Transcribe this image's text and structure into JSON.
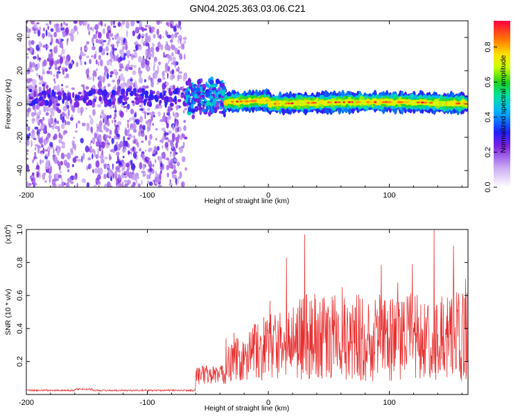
{
  "title": "GN04.2025.363.03.06.C21",
  "chart_data": [
    {
      "type": "heatmap",
      "title": "GN04.2025.363.03.06.C21",
      "xlabel": "Height of straight line (km)",
      "ylabel": "Frequency (Hz)",
      "xlim": [
        -200,
        165
      ],
      "ylim": [
        -50,
        50
      ],
      "x_ticks": [
        -200,
        -100,
        0,
        100
      ],
      "y_ticks": [
        -40,
        -20,
        0,
        20,
        40
      ],
      "colorbar": {
        "label": "Normalized spectral amplitude",
        "range": [
          0.0,
          0.95
        ],
        "ticks": [
          "0.0",
          "0.2",
          "0.4",
          "0.6",
          "0.8"
        ],
        "tick_values": [
          0.0,
          0.2,
          0.4,
          0.6,
          0.8
        ]
      },
      "regions": [
        {
          "name": "noise",
          "x_range": [
            -200,
            -68
          ],
          "y_range": [
            -50,
            50
          ],
          "amplitude": 0.1
        },
        {
          "name": "onset",
          "x_range": [
            -68,
            -35
          ],
          "center_freq": 4,
          "half_width": 12,
          "amplitude": 0.35
        },
        {
          "name": "signal_band",
          "x_range": [
            -35,
            165
          ],
          "center_freq": 0,
          "half_width": 4,
          "amplitude": 0.75
        }
      ]
    },
    {
      "type": "line",
      "xlabel": "Height of straight line (km)",
      "ylabel": "SNR (10 * v/v)",
      "scale_label": "(x10",
      "scale_exponent": "4",
      "scale_suffix": ")",
      "xlim": [
        -200,
        165
      ],
      "ylim": [
        0,
        1.0
      ],
      "x_ticks": [
        -200,
        -100,
        0,
        100
      ],
      "y_ticks": [
        0.2,
        0.4,
        0.6,
        0.8,
        1.0
      ],
      "series": [
        {
          "name": "SNR",
          "color": "#e83030",
          "segments": [
            {
              "x_range": [
                -200,
                -60
              ],
              "baseline": 0.02,
              "noise": 0.01
            },
            {
              "x_range": [
                -60,
                -35
              ],
              "baseline": 0.06,
              "noise": 0.12
            },
            {
              "x_range": [
                -35,
                165
              ],
              "baseline": 0.1,
              "noise": 0.45
            }
          ],
          "peaks": [
            {
              "x": 30,
              "y": 0.97
            },
            {
              "x": 137,
              "y": 1.0
            },
            {
              "x": 153,
              "y": 0.9
            },
            {
              "x": 15,
              "y": 0.83
            },
            {
              "x": 61,
              "y": 0.65
            },
            {
              "x": 107,
              "y": 0.68
            },
            {
              "x": 119,
              "y": 0.79
            },
            {
              "x": 163,
              "y": 0.7
            }
          ]
        }
      ]
    }
  ]
}
